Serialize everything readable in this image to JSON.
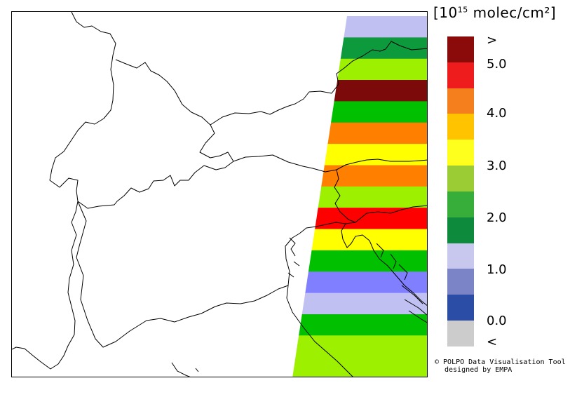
{
  "legend": {
    "unit_prefix": "[10",
    "unit_exponent": "15",
    "unit_suffix": " molec/cm²]",
    "colors": [
      "#8b0b0b",
      "#ee1c1c",
      "#f47f1c",
      "#ffc300",
      "#ffff1e",
      "#9bcc33",
      "#37ae3a",
      "#0d8a3c",
      "#c8c8ee",
      "#7a84c6",
      "#2b4da6",
      "#cccccc"
    ],
    "labels": [
      ">",
      "5.0",
      "4.0",
      "3.0",
      "2.0",
      "1.0",
      "0.0",
      "<"
    ]
  },
  "swath_colors": [
    "#c0c0f2",
    "#0d9a3c",
    "#9cf000",
    "#7d0a0a",
    "#00c000",
    "#ff8000",
    "#ffff00",
    "#ff8000",
    "#9cf000",
    "#ff0000",
    "#ffff00",
    "#00c000",
    "#7f7fff",
    "#c0c0f2",
    "#00c000",
    "#9cf000",
    "#9cf000"
  ],
  "credit": {
    "line1": "© POLPO Data Visualisation Tool",
    "line2": "designed by EMPA"
  }
}
